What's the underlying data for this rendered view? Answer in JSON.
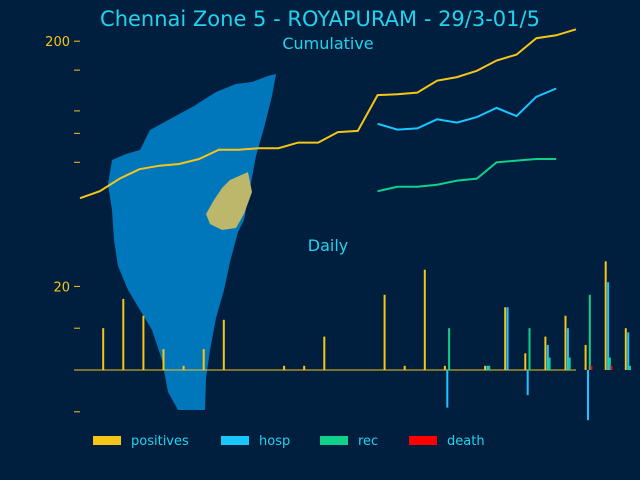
{
  "colors": {
    "background": "#001f3f",
    "axis": "#f5c518",
    "title": "#22d3ee",
    "positives": "#f5c518",
    "hosp": "#1ac6ff",
    "rec": "#10d08a",
    "death": "#ff0000",
    "map_city": "#0077bb",
    "map_zone": "#bdb76b"
  },
  "chart_data": {
    "type": "line",
    "title": "Chennai Zone 5 - ROYAPURAM - 29/3-01/5",
    "subtitle_top": "Cumulative",
    "subtitle_bottom": "Daily",
    "top_panel": {
      "scale": "log",
      "y_ticks": [
        200
      ],
      "x_index": [
        0,
        1,
        2,
        3,
        4,
        5,
        6,
        7,
        8,
        9,
        10,
        11,
        12,
        13,
        14,
        15,
        16,
        17,
        18,
        19,
        20,
        21,
        22,
        23,
        24,
        25
      ],
      "series": [
        {
          "name": "positives",
          "values": [
            42,
            45,
            51,
            56,
            58,
            59,
            62,
            68,
            68,
            69,
            69,
            73,
            73,
            81,
            82,
            117,
            118,
            120,
            135,
            140,
            149,
            165,
            175,
            206,
            212,
            225
          ]
        },
        {
          "name": "hosp",
          "values": [
            null,
            null,
            null,
            null,
            null,
            null,
            null,
            null,
            null,
            null,
            null,
            null,
            null,
            null,
            null,
            88,
            83,
            84,
            92,
            89,
            94,
            103,
            95,
            115,
            125,
            null
          ]
        },
        {
          "name": "rec",
          "values": [
            null,
            null,
            null,
            null,
            null,
            null,
            null,
            null,
            null,
            null,
            null,
            null,
            null,
            null,
            null,
            45,
            47,
            47,
            48,
            50,
            51,
            60,
            61,
            62,
            62,
            null
          ]
        }
      ]
    },
    "bottom_panel": {
      "y_ticks": [
        20
      ],
      "categories": [
        "1",
        "2",
        "3",
        "4",
        "5",
        "6",
        "7",
        "8",
        "9",
        "10",
        "11",
        "12",
        "13",
        "14",
        "15",
        "16",
        "17",
        "18",
        "19",
        "20",
        "21",
        "22",
        "23",
        "24",
        "25",
        "26",
        "27",
        "28",
        "29",
        "30",
        "31",
        "32",
        "33",
        "34"
      ],
      "series": [
        {
          "name": "positives",
          "values": [
            10,
            17,
            13,
            5,
            1,
            5,
            12,
            0,
            0,
            1,
            1,
            8,
            0,
            0,
            18,
            1,
            24,
            1,
            0,
            1,
            15,
            4,
            8,
            13,
            6,
            26,
            10,
            0,
            0,
            0,
            0,
            0,
            0,
            0
          ]
        },
        {
          "name": "hosp",
          "values": [
            0,
            0,
            0,
            0,
            0,
            0,
            0,
            0,
            0,
            0,
            0,
            0,
            0,
            0,
            0,
            0,
            0,
            -9,
            0,
            1,
            15,
            -6,
            6,
            10,
            -12,
            21,
            9,
            0,
            0,
            0,
            0,
            0,
            0,
            0
          ]
        },
        {
          "name": "rec",
          "values": [
            0,
            0,
            0,
            0,
            0,
            0,
            0,
            0,
            0,
            0,
            0,
            0,
            0,
            0,
            0,
            0,
            0,
            10,
            0,
            1,
            0,
            10,
            3,
            3,
            18,
            3,
            1,
            0,
            0,
            0,
            0,
            0,
            0,
            0
          ]
        },
        {
          "name": "death",
          "values": [
            0,
            0,
            0,
            0,
            0,
            0,
            0,
            0,
            0,
            0,
            0,
            0,
            0,
            0,
            0,
            0,
            0,
            0,
            0,
            0,
            0,
            0,
            0,
            0,
            1,
            1,
            0,
            0,
            0,
            0,
            0,
            0,
            0,
            0
          ]
        }
      ]
    },
    "legend": [
      "positives",
      "hosp",
      "rec",
      "death"
    ],
    "legend_placement": "bottom"
  }
}
